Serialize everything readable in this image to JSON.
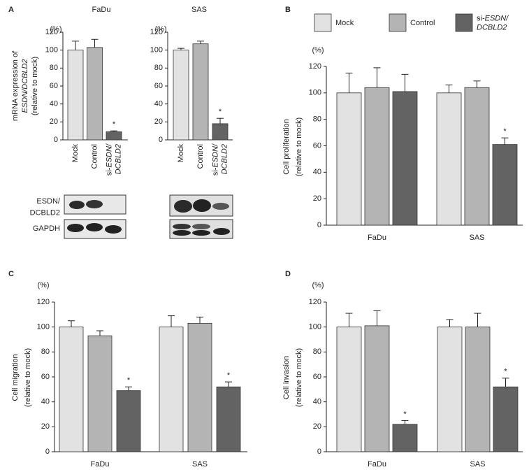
{
  "panel_labels": [
    "A",
    "B",
    "C",
    "D"
  ],
  "blots": {
    "rows": [
      "ESDN/DCBLD2",
      "GAPDH"
    ]
  },
  "chart_data": [
    {
      "type": "bar",
      "title": "FaDu",
      "y_unit": "(%)",
      "y_label": [
        "mRNA expression of",
        "ESDN/DCBLD2",
        "(relative to mock)"
      ],
      "categories": [
        "Mock",
        "Control",
        "si-ESDN/DCBLD2"
      ],
      "values": [
        100,
        103,
        9
      ],
      "errors": [
        10,
        9,
        1
      ],
      "colors": [
        "#e2e2e2",
        "#b4b4b4",
        "#636363"
      ],
      "annotations": [
        null,
        null,
        "*"
      ],
      "ylim": [
        0,
        120
      ],
      "yticks": [
        0,
        20,
        40,
        60,
        80,
        100,
        120
      ]
    },
    {
      "type": "bar",
      "title": "SAS",
      "y_unit": "(%)",
      "categories": [
        "Mock",
        "Control",
        "si-ESDN/DCBLD2"
      ],
      "values": [
        100,
        107,
        18
      ],
      "errors": [
        2,
        3,
        6
      ],
      "colors": [
        "#e2e2e2",
        "#b4b4b4",
        "#636363"
      ],
      "annotations": [
        null,
        null,
        "*"
      ],
      "ylim": [
        0,
        120
      ],
      "yticks": [
        0,
        20,
        40,
        60,
        80,
        100,
        120
      ]
    },
    {
      "type": "grouped-bar",
      "y_unit": "(%)",
      "legend": "top",
      "y_label": [
        "Cell proliferation",
        "(relative to mock)"
      ],
      "categories": [
        "FaDu",
        "SAS"
      ],
      "series": [
        {
          "name": "Mock",
          "color": "#e2e2e2",
          "values": [
            100,
            100
          ],
          "errors": [
            15,
            6
          ],
          "annotations": [
            null,
            null
          ]
        },
        {
          "name": "Control",
          "color": "#b4b4b4",
          "values": [
            104,
            104
          ],
          "errors": [
            15,
            5
          ],
          "annotations": [
            null,
            null
          ]
        },
        {
          "name": "si-ESDN/DCBLD2",
          "color": "#636363",
          "values": [
            101,
            61
          ],
          "errors": [
            13,
            5
          ],
          "annotations": [
            null,
            "*"
          ]
        }
      ],
      "ylim": [
        0,
        120
      ],
      "yticks": [
        0,
        20,
        40,
        60,
        80,
        100,
        120
      ]
    },
    {
      "type": "grouped-bar",
      "y_unit": "(%)",
      "y_label": [
        "Cell migration",
        "(relative to mock)"
      ],
      "categories": [
        "FaDu",
        "SAS"
      ],
      "series": [
        {
          "name": "Mock",
          "color": "#e2e2e2",
          "values": [
            100,
            100
          ],
          "errors": [
            5,
            9
          ],
          "annotations": [
            null,
            null
          ]
        },
        {
          "name": "Control",
          "color": "#b4b4b4",
          "values": [
            93,
            103
          ],
          "errors": [
            4,
            5
          ],
          "annotations": [
            null,
            null
          ]
        },
        {
          "name": "si-ESDN/DCBLD2",
          "color": "#636363",
          "values": [
            49,
            52
          ],
          "errors": [
            3,
            4
          ],
          "annotations": [
            "*",
            "*"
          ]
        }
      ],
      "ylim": [
        0,
        120
      ],
      "yticks": [
        0,
        20,
        40,
        60,
        80,
        100,
        120
      ]
    },
    {
      "type": "grouped-bar",
      "y_unit": "(%)",
      "y_label": [
        "Cell invasion",
        "(relative to mock)"
      ],
      "categories": [
        "FaDu",
        "SAS"
      ],
      "series": [
        {
          "name": "Mock",
          "color": "#e2e2e2",
          "values": [
            100,
            100
          ],
          "errors": [
            11,
            6
          ],
          "annotations": [
            null,
            null
          ]
        },
        {
          "name": "Control",
          "color": "#b4b4b4",
          "values": [
            101,
            100
          ],
          "errors": [
            12,
            11
          ],
          "annotations": [
            null,
            null
          ]
        },
        {
          "name": "si-ESDN/DCBLD2",
          "color": "#636363",
          "values": [
            22,
            52
          ],
          "errors": [
            3,
            7
          ],
          "annotations": [
            "*",
            "*"
          ]
        }
      ],
      "ylim": [
        0,
        120
      ],
      "yticks": [
        0,
        20,
        40,
        60,
        80,
        100,
        120
      ]
    }
  ]
}
